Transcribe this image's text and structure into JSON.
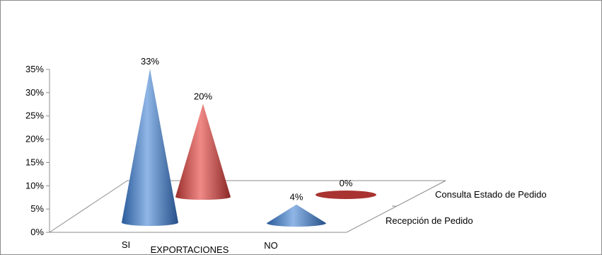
{
  "chart_data": {
    "type": "bar",
    "subtype": "3d-cone",
    "title": "",
    "xlabel": "EXPORTACIONES",
    "ylabel": "",
    "ylim": [
      0,
      35
    ],
    "y_ticks": [
      "0%",
      "5%",
      "10%",
      "15%",
      "20%",
      "25%",
      "30%",
      "35%"
    ],
    "categories": [
      "SI",
      "NO"
    ],
    "series": [
      {
        "name": "Recepción de Pedido",
        "values": [
          33,
          4
        ],
        "labels": [
          "33%",
          "4%"
        ],
        "color": "#4a7fc1"
      },
      {
        "name": "Consulta Estado de Pedido",
        "values": [
          20,
          0
        ],
        "labels": [
          "20%",
          "0%"
        ],
        "color": "#c0504d"
      }
    ],
    "grid": false,
    "legend": "depth-axis labels"
  }
}
